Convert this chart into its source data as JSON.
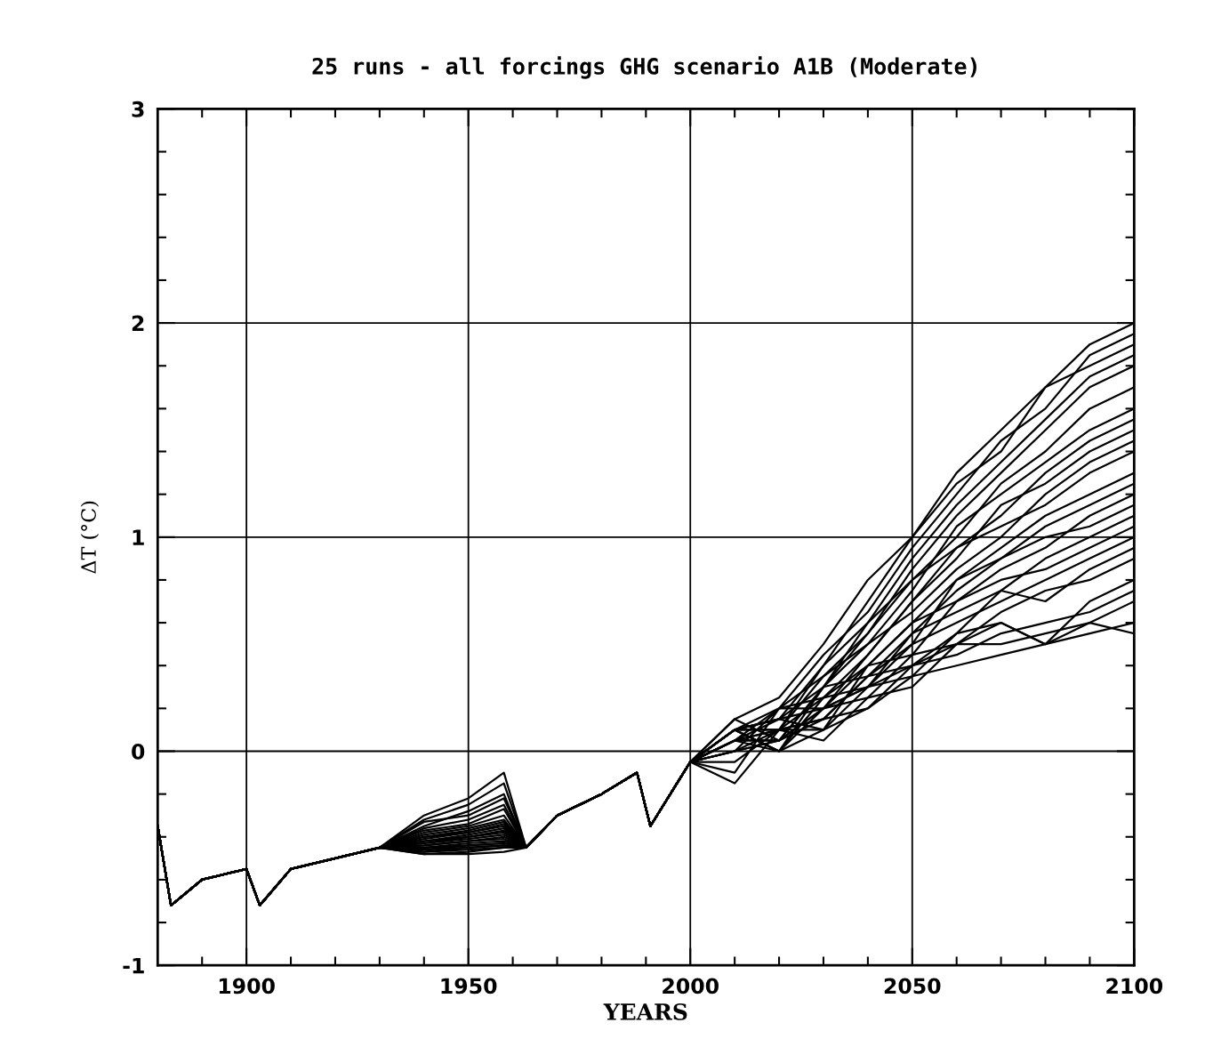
{
  "chart_data": {
    "type": "line",
    "title": "25 runs - all forcings GHG scenario A1B (Moderate)",
    "xlabel": "YEARS",
    "ylabel": "ΔT (°C)",
    "grid": true,
    "line_style": "solid",
    "marker": "none",
    "x": [
      1880,
      1883,
      1890,
      1900,
      1903,
      1910,
      1920,
      1930,
      1940,
      1950,
      1958,
      1963,
      1970,
      1980,
      1988,
      1991,
      2000,
      2010,
      2020,
      2030,
      2040,
      2050,
      2060,
      2070,
      2080,
      2090,
      2100
    ],
    "xlim": [
      1880,
      2100
    ],
    "ylim": [
      -1,
      3
    ],
    "xticks": [
      {
        "value": 1890,
        "label": null
      },
      1900,
      {
        "value": 1910,
        "label": null
      },
      {
        "value": 1920,
        "label": null
      },
      {
        "value": 1930,
        "label": null
      },
      {
        "value": 1940,
        "label": null
      },
      1950,
      {
        "value": 1960,
        "label": null
      },
      {
        "value": 1970,
        "label": null
      },
      {
        "value": 1980,
        "label": null
      },
      {
        "value": 1990,
        "label": null
      },
      2000,
      {
        "value": 2010,
        "label": null
      },
      {
        "value": 2020,
        "label": null
      },
      {
        "value": 2030,
        "label": null
      },
      {
        "value": 2040,
        "label": null
      },
      2050,
      {
        "value": 2060,
        "label": null
      },
      {
        "value": 2070,
        "label": null
      },
      {
        "value": 2080,
        "label": null
      },
      {
        "value": 2090,
        "label": null
      },
      2100
    ],
    "yticks": [
      -1,
      {
        "value": -0.8,
        "label": null
      },
      {
        "value": -0.6,
        "label": null
      },
      {
        "value": -0.4,
        "label": null
      },
      {
        "value": -0.2,
        "label": null
      },
      0,
      {
        "value": 0.2,
        "label": null
      },
      {
        "value": 0.4,
        "label": null
      },
      {
        "value": 0.6,
        "label": null
      },
      {
        "value": 0.8,
        "label": null
      },
      1,
      {
        "value": 1.2,
        "label": null
      },
      {
        "value": 1.4,
        "label": null
      },
      {
        "value": 1.6,
        "label": null
      },
      {
        "value": 1.8,
        "label": null
      },
      2,
      {
        "value": 2.2,
        "label": null
      },
      {
        "value": 2.4,
        "label": null
      },
      {
        "value": 2.6,
        "label": null
      },
      {
        "value": 2.8,
        "label": null
      },
      3
    ],
    "series": [
      {
        "color": "#000000",
        "values": [
          -0.35,
          -0.72,
          -0.6,
          -0.55,
          -0.72,
          -0.55,
          -0.5,
          -0.45,
          -0.3,
          -0.22,
          -0.1,
          -0.45,
          -0.3,
          -0.2,
          -0.1,
          -0.35,
          -0.05,
          0.1,
          0.15,
          0.4,
          0.7,
          1.0,
          1.3,
          1.5,
          1.7,
          1.9,
          2.0
        ]
      },
      {
        "color": "#000000",
        "values": [
          -0.35,
          -0.72,
          -0.6,
          -0.55,
          -0.72,
          -0.55,
          -0.5,
          -0.45,
          -0.32,
          -0.25,
          -0.15,
          -0.45,
          -0.3,
          -0.2,
          -0.1,
          -0.35,
          -0.05,
          0.05,
          0.2,
          0.45,
          0.65,
          0.95,
          1.2,
          1.45,
          1.6,
          1.85,
          1.95
        ]
      },
      {
        "color": "#000000",
        "values": [
          -0.35,
          -0.72,
          -0.6,
          -0.55,
          -0.72,
          -0.55,
          -0.5,
          -0.45,
          -0.35,
          -0.28,
          -0.2,
          -0.45,
          -0.3,
          -0.2,
          -0.1,
          -0.35,
          -0.05,
          0.15,
          0.25,
          0.5,
          0.8,
          1.0,
          1.25,
          1.4,
          1.7,
          1.8,
          1.9
        ]
      },
      {
        "color": "#000000",
        "values": [
          -0.35,
          -0.72,
          -0.6,
          -0.55,
          -0.72,
          -0.55,
          -0.5,
          -0.45,
          -0.33,
          -0.3,
          -0.22,
          -0.45,
          -0.3,
          -0.2,
          -0.1,
          -0.35,
          -0.05,
          0.1,
          0.1,
          0.4,
          0.6,
          0.9,
          1.15,
          1.35,
          1.55,
          1.75,
          1.85
        ]
      },
      {
        "color": "#000000",
        "values": [
          -0.35,
          -0.72,
          -0.6,
          -0.55,
          -0.72,
          -0.55,
          -0.5,
          -0.45,
          -0.36,
          -0.32,
          -0.25,
          -0.45,
          -0.3,
          -0.2,
          -0.1,
          -0.35,
          -0.05,
          0.0,
          0.2,
          0.35,
          0.55,
          0.85,
          1.1,
          1.3,
          1.5,
          1.7,
          1.8
        ]
      },
      {
        "color": "#000000",
        "values": [
          -0.35,
          -0.72,
          -0.6,
          -0.55,
          -0.72,
          -0.55,
          -0.5,
          -0.45,
          -0.37,
          -0.34,
          -0.27,
          -0.45,
          -0.3,
          -0.2,
          -0.1,
          -0.35,
          -0.05,
          0.1,
          0.15,
          0.3,
          0.6,
          0.8,
          1.0,
          1.25,
          1.4,
          1.6,
          1.7
        ]
      },
      {
        "color": "#000000",
        "values": [
          -0.35,
          -0.72,
          -0.6,
          -0.55,
          -0.72,
          -0.55,
          -0.5,
          -0.45,
          -0.38,
          -0.35,
          -0.3,
          -0.45,
          -0.3,
          -0.2,
          -0.1,
          -0.35,
          -0.05,
          0.05,
          0.1,
          0.35,
          0.5,
          0.75,
          1.05,
          1.2,
          1.35,
          1.5,
          1.6
        ]
      },
      {
        "color": "#000000",
        "values": [
          -0.35,
          -0.72,
          -0.6,
          -0.55,
          -0.72,
          -0.55,
          -0.5,
          -0.45,
          -0.39,
          -0.36,
          -0.32,
          -0.45,
          -0.3,
          -0.2,
          -0.1,
          -0.35,
          -0.05,
          0.15,
          0.05,
          0.3,
          0.55,
          0.8,
          0.95,
          1.1,
          1.3,
          1.45,
          1.55
        ]
      },
      {
        "color": "#000000",
        "values": [
          -0.35,
          -0.72,
          -0.6,
          -0.55,
          -0.72,
          -0.55,
          -0.5,
          -0.45,
          -0.4,
          -0.37,
          -0.33,
          -0.45,
          -0.3,
          -0.2,
          -0.1,
          -0.35,
          -0.05,
          -0.1,
          0.2,
          0.25,
          0.45,
          0.7,
          0.9,
          1.15,
          1.25,
          1.4,
          1.5
        ]
      },
      {
        "color": "#000000",
        "values": [
          -0.35,
          -0.72,
          -0.6,
          -0.55,
          -0.72,
          -0.55,
          -0.5,
          -0.45,
          -0.4,
          -0.38,
          -0.34,
          -0.45,
          -0.3,
          -0.2,
          -0.1,
          -0.35,
          -0.05,
          0.1,
          0.0,
          0.3,
          0.5,
          0.65,
          0.85,
          1.0,
          1.2,
          1.35,
          1.45
        ]
      },
      {
        "color": "#000000",
        "values": [
          -0.35,
          -0.72,
          -0.6,
          -0.55,
          -0.72,
          -0.55,
          -0.5,
          -0.45,
          -0.41,
          -0.38,
          -0.35,
          -0.45,
          -0.3,
          -0.2,
          -0.1,
          -0.35,
          -0.05,
          0.05,
          0.15,
          0.2,
          0.45,
          0.7,
          0.95,
          1.05,
          1.15,
          1.3,
          1.4
        ]
      },
      {
        "color": "#000000",
        "values": [
          -0.35,
          -0.72,
          -0.6,
          -0.55,
          -0.72,
          -0.55,
          -0.5,
          -0.45,
          -0.42,
          -0.39,
          -0.36,
          -0.45,
          -0.3,
          -0.2,
          -0.1,
          -0.35,
          -0.05,
          0.1,
          0.1,
          0.25,
          0.4,
          0.6,
          0.8,
          0.95,
          1.1,
          1.2,
          1.3
        ]
      },
      {
        "color": "#000000",
        "values": [
          -0.35,
          -0.72,
          -0.6,
          -0.55,
          -0.72,
          -0.55,
          -0.5,
          -0.45,
          -0.42,
          -0.4,
          -0.37,
          -0.45,
          -0.3,
          -0.2,
          -0.1,
          -0.35,
          -0.05,
          0.0,
          0.05,
          0.3,
          0.35,
          0.55,
          0.75,
          0.9,
          1.05,
          1.15,
          1.25
        ]
      },
      {
        "color": "#000000",
        "values": [
          -0.35,
          -0.72,
          -0.6,
          -0.55,
          -0.72,
          -0.55,
          -0.5,
          -0.45,
          -0.43,
          -0.4,
          -0.38,
          -0.45,
          -0.3,
          -0.2,
          -0.1,
          -0.35,
          -0.05,
          0.1,
          0.2,
          0.2,
          0.4,
          0.6,
          0.7,
          0.85,
          0.95,
          1.1,
          1.2
        ]
      },
      {
        "color": "#000000",
        "values": [
          -0.35,
          -0.72,
          -0.6,
          -0.55,
          -0.72,
          -0.55,
          -0.5,
          -0.45,
          -0.43,
          -0.41,
          -0.39,
          -0.45,
          -0.3,
          -0.2,
          -0.1,
          -0.35,
          -0.05,
          -0.15,
          0.1,
          0.15,
          0.35,
          0.5,
          0.8,
          0.9,
          1.0,
          1.05,
          1.15
        ]
      },
      {
        "color": "#000000",
        "values": [
          -0.35,
          -0.72,
          -0.6,
          -0.55,
          -0.72,
          -0.55,
          -0.5,
          -0.45,
          -0.44,
          -0.42,
          -0.4,
          -0.45,
          -0.3,
          -0.2,
          -0.1,
          -0.35,
          -0.05,
          0.05,
          0.0,
          0.25,
          0.3,
          0.55,
          0.65,
          0.75,
          0.9,
          1.0,
          1.1
        ]
      },
      {
        "color": "#000000",
        "values": [
          -0.35,
          -0.72,
          -0.6,
          -0.55,
          -0.72,
          -0.55,
          -0.5,
          -0.45,
          -0.44,
          -0.42,
          -0.41,
          -0.45,
          -0.3,
          -0.2,
          -0.1,
          -0.35,
          -0.05,
          0.1,
          0.15,
          0.1,
          0.4,
          0.45,
          0.7,
          0.8,
          0.85,
          0.95,
          1.05
        ]
      },
      {
        "color": "#000000",
        "values": [
          -0.35,
          -0.72,
          -0.6,
          -0.55,
          -0.72,
          -0.55,
          -0.5,
          -0.45,
          -0.45,
          -0.43,
          -0.42,
          -0.45,
          -0.3,
          -0.2,
          -0.1,
          -0.35,
          -0.05,
          0.0,
          0.05,
          0.2,
          0.3,
          0.5,
          0.6,
          0.7,
          0.8,
          0.9,
          1.0
        ]
      },
      {
        "color": "#000000",
        "values": [
          -0.35,
          -0.72,
          -0.6,
          -0.55,
          -0.72,
          -0.55,
          -0.5,
          -0.45,
          -0.45,
          -0.44,
          -0.43,
          -0.45,
          -0.3,
          -0.2,
          -0.1,
          -0.35,
          -0.05,
          0.05,
          0.1,
          0.15,
          0.35,
          0.4,
          0.55,
          0.75,
          0.7,
          0.85,
          0.95
        ]
      },
      {
        "color": "#000000",
        "values": [
          -0.35,
          -0.72,
          -0.6,
          -0.55,
          -0.72,
          -0.55,
          -0.5,
          -0.45,
          -0.46,
          -0.44,
          -0.43,
          -0.45,
          -0.3,
          -0.2,
          -0.1,
          -0.35,
          -0.05,
          0.1,
          0.0,
          0.2,
          0.25,
          0.45,
          0.5,
          0.65,
          0.75,
          0.8,
          0.9
        ]
      },
      {
        "color": "#000000",
        "values": [
          -0.35,
          -0.72,
          -0.6,
          -0.55,
          -0.72,
          -0.55,
          -0.5,
          -0.45,
          -0.46,
          -0.45,
          -0.44,
          -0.45,
          -0.3,
          -0.2,
          -0.1,
          -0.35,
          -0.05,
          -0.05,
          0.1,
          0.1,
          0.3,
          0.35,
          0.55,
          0.6,
          0.5,
          0.7,
          0.8
        ]
      },
      {
        "color": "#000000",
        "values": [
          -0.35,
          -0.72,
          -0.6,
          -0.55,
          -0.72,
          -0.55,
          -0.5,
          -0.45,
          -0.47,
          -0.45,
          -0.44,
          -0.45,
          -0.3,
          -0.2,
          -0.1,
          -0.35,
          -0.05,
          0.05,
          0.05,
          0.15,
          0.2,
          0.4,
          0.45,
          0.55,
          0.6,
          0.65,
          0.75
        ]
      },
      {
        "color": "#000000",
        "values": [
          -0.35,
          -0.72,
          -0.6,
          -0.55,
          -0.72,
          -0.55,
          -0.5,
          -0.45,
          -0.47,
          -0.46,
          -0.45,
          -0.45,
          -0.3,
          -0.2,
          -0.1,
          -0.35,
          -0.05,
          0.0,
          0.1,
          0.05,
          0.25,
          0.3,
          0.5,
          0.5,
          0.55,
          0.6,
          0.7
        ]
      },
      {
        "color": "#000000",
        "values": [
          -0.35,
          -0.72,
          -0.6,
          -0.55,
          -0.72,
          -0.55,
          -0.5,
          -0.45,
          -0.48,
          -0.47,
          -0.45,
          -0.45,
          -0.3,
          -0.2,
          -0.1,
          -0.35,
          -0.05,
          0.1,
          0.0,
          0.1,
          0.2,
          0.35,
          0.4,
          0.45,
          0.5,
          0.55,
          0.6
        ]
      },
      {
        "color": "#000000",
        "values": [
          -0.35,
          -0.72,
          -0.6,
          -0.55,
          -0.72,
          -0.55,
          -0.5,
          -0.45,
          -0.48,
          -0.48,
          -0.47,
          -0.45,
          -0.3,
          -0.2,
          -0.1,
          -0.35,
          -0.05,
          0.05,
          0.05,
          0.2,
          0.3,
          0.4,
          0.5,
          0.6,
          0.5,
          0.6,
          0.55
        ]
      }
    ]
  }
}
